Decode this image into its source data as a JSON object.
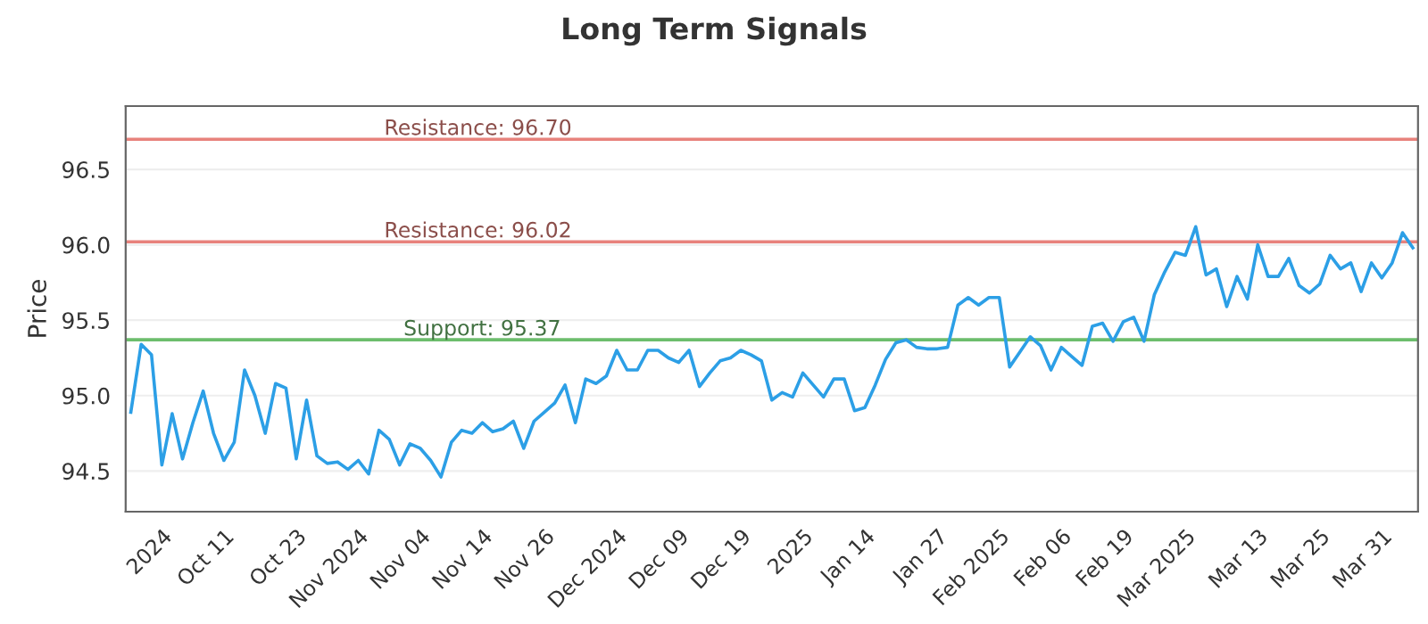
{
  "chart_data": {
    "type": "line",
    "title": "Long Term Signals",
    "ylabel": "Price",
    "categories": [
      null,
      null,
      null,
      "2024",
      null,
      null,
      null,
      null,
      null,
      "Oct 11",
      null,
      null,
      null,
      null,
      null,
      null,
      "Oct 23",
      null,
      null,
      null,
      null,
      null,
      "Nov 2024",
      null,
      null,
      null,
      null,
      null,
      "Nov 04",
      null,
      null,
      null,
      null,
      null,
      "Nov 14",
      null,
      null,
      null,
      null,
      null,
      "Nov 26",
      null,
      null,
      null,
      null,
      null,
      null,
      "Dec 2024",
      null,
      null,
      null,
      null,
      null,
      "Dec 09",
      null,
      null,
      null,
      null,
      null,
      "Dec 19",
      null,
      null,
      null,
      null,
      null,
      "2025",
      null,
      null,
      null,
      null,
      null,
      "Jan 14",
      null,
      null,
      null,
      null,
      null,
      null,
      "Jan 27",
      null,
      null,
      null,
      null,
      null,
      "Feb 2025",
      null,
      null,
      null,
      null,
      null,
      "Feb 06",
      null,
      null,
      null,
      null,
      null,
      "Feb 19",
      null,
      null,
      null,
      null,
      null,
      "Mar 2025",
      null,
      null,
      null,
      null,
      null,
      null,
      "Mar 13",
      null,
      null,
      null,
      null,
      null,
      "Mar 25",
      null,
      null,
      null,
      null,
      null,
      "Mar 31",
      null,
      null,
      null
    ],
    "series": [
      {
        "color": "#2c9fe6",
        "values": [
          94.89,
          95.34,
          95.27,
          94.54,
          94.88,
          94.58,
          94.82,
          95.03,
          94.75,
          94.57,
          94.69,
          95.17,
          95.0,
          94.75,
          95.08,
          95.05,
          94.58,
          94.97,
          94.6,
          94.55,
          94.56,
          94.51,
          94.57,
          94.48,
          94.77,
          94.71,
          94.54,
          94.68,
          94.65,
          94.57,
          94.46,
          94.69,
          94.77,
          94.75,
          94.82,
          94.76,
          94.78,
          94.83,
          94.65,
          94.83,
          94.89,
          94.95,
          95.07,
          94.82,
          95.11,
          95.08,
          95.13,
          95.3,
          95.17,
          95.17,
          95.3,
          95.3,
          95.25,
          95.22,
          95.3,
          95.06,
          95.15,
          95.23,
          95.25,
          95.3,
          95.27,
          95.23,
          94.97,
          95.02,
          94.99,
          95.15,
          95.07,
          94.99,
          95.11,
          95.11,
          94.9,
          94.92,
          95.07,
          95.24,
          95.35,
          95.37,
          95.32,
          95.31,
          95.31,
          95.32,
          95.6,
          95.65,
          95.6,
          95.65,
          95.65,
          95.19,
          95.29,
          95.39,
          95.33,
          95.17,
          95.32,
          95.26,
          95.2,
          95.46,
          95.48,
          95.36,
          95.49,
          95.52,
          95.36,
          95.67,
          95.82,
          95.95,
          95.93,
          96.12,
          95.8,
          95.84,
          95.59,
          95.79,
          95.64,
          96.0,
          95.79,
          95.79,
          95.91,
          95.73,
          95.68,
          95.74,
          95.93,
          95.84,
          95.88,
          95.69,
          95.88,
          95.78,
          95.88,
          96.08,
          95.98
        ]
      }
    ],
    "ylim": [
      94.23,
      96.92
    ],
    "yticks": [
      94.5,
      {
        "value": 95,
        "label": "95.0"
      },
      95.5,
      {
        "value": 96,
        "label": "96.0"
      },
      96.5
    ],
    "ref_lines": [
      {
        "axis": "y",
        "value": 96.7,
        "label": "Resistance: 96.70",
        "color": "#e8827c"
      },
      {
        "axis": "y",
        "value": 96.02,
        "label": "Resistance: 96.02",
        "color": "#e8827c"
      },
      {
        "axis": "y",
        "value": 95.37,
        "label": "Support: 95.37",
        "color": "#6cbd6c"
      }
    ],
    "grid": "y",
    "marker": "none",
    "line_style": "solid",
    "legend": false
  }
}
